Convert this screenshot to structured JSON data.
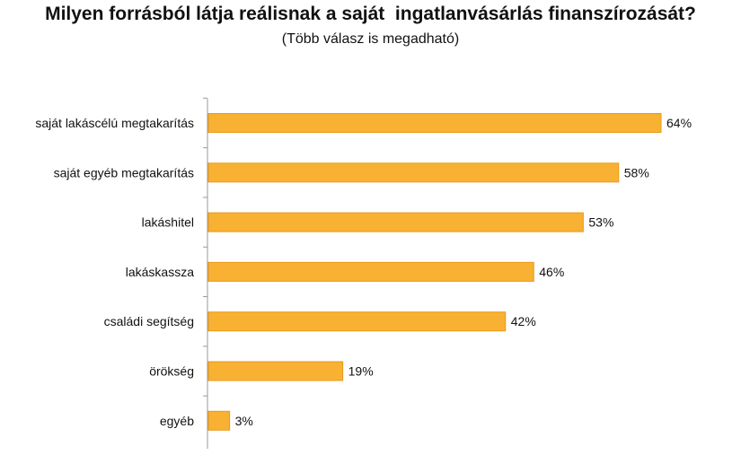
{
  "chart_data": {
    "type": "bar",
    "orientation": "horizontal",
    "title": "Milyen forrásból látja reálisnak a saját  ingatlanvásárlás finanszírozását?",
    "subtitle": "(Több válasz is megadható)",
    "categories": [
      "saját lakáscélú megtakarítás",
      "saját egyéb megtakarítás",
      "lakáshitel",
      "lakáskassza",
      "családi segítség",
      "örökség",
      "egyéb"
    ],
    "values": [
      64,
      58,
      53,
      46,
      42,
      19,
      3
    ],
    "value_labels": [
      "64%",
      "58%",
      "53%",
      "46%",
      "42%",
      "19%",
      "3%"
    ],
    "unit": "%",
    "xlim": [
      0,
      64
    ],
    "grid": false,
    "legend": "none",
    "bar_color": "#f8b133",
    "bar_border_color": "#e99a1a",
    "axis_color": "#999999"
  }
}
